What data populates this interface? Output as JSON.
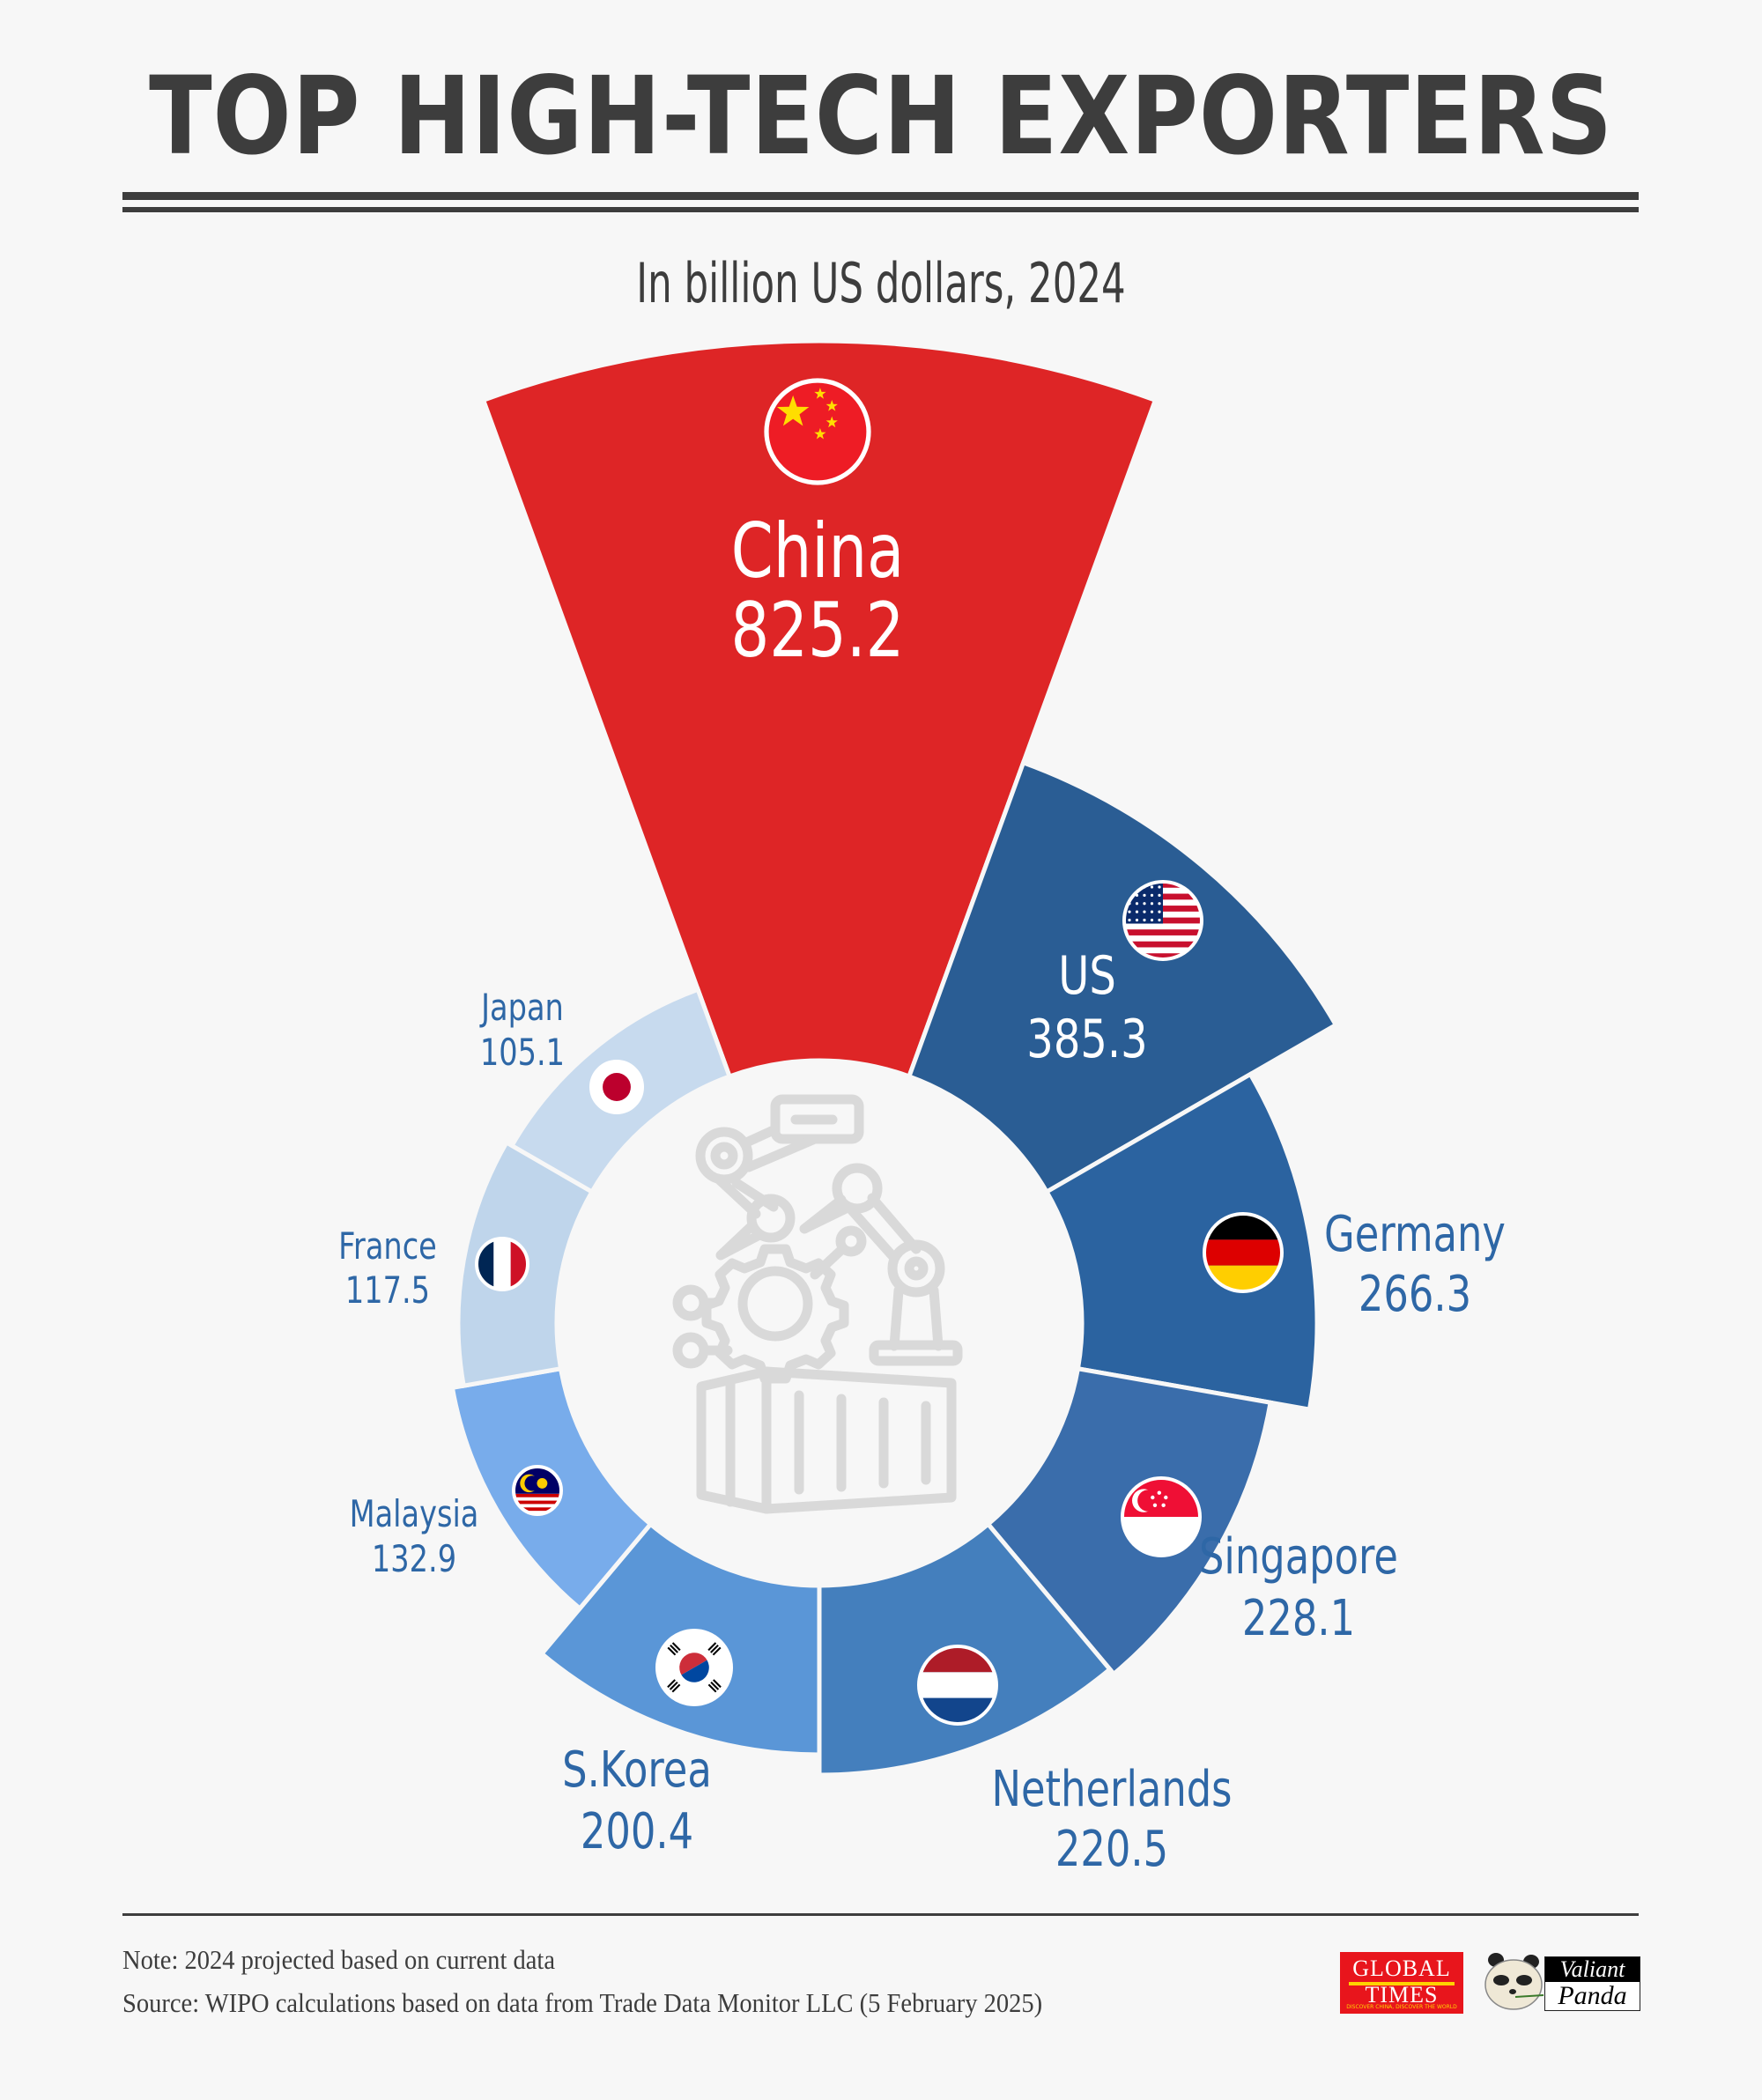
{
  "header": {
    "title": "TOP HIGH-TECH EXPORTERS",
    "subtitle": "In billion US dollars, 2024"
  },
  "colors": {
    "background": "#f7f7f7",
    "text_dark": "#3d3d3d",
    "label_blue": "#2e67a6",
    "icon_gray": "#d9d9d9"
  },
  "chart_data": {
    "type": "pie",
    "subtype": "nightingale-rose-donut",
    "title": "TOP HIGH-TECH EXPORTERS",
    "subtitle": "In billion US dollars, 2024",
    "unit": "billion US dollars",
    "year": 2024,
    "categories": [
      "China",
      "US",
      "Germany",
      "Singapore",
      "Netherlands",
      "S.Korea",
      "Malaysia",
      "France",
      "Japan"
    ],
    "values": [
      825.2,
      385.3,
      266.3,
      228.1,
      220.5,
      200.4,
      132.9,
      117.5,
      105.1
    ],
    "segment_colors": [
      "#de2526",
      "#2a5d94",
      "#2b63a0",
      "#3a6dab",
      "#447fbd",
      "#5a96d7",
      "#78aceb",
      "#bfd5eb",
      "#c7daee"
    ],
    "center_icon": "robot-arm-gear-container-icon",
    "legend": "none"
  },
  "segments": [
    {
      "name": "China",
      "value": "825.2",
      "flag": "china-flag",
      "label_color": "#ffffff"
    },
    {
      "name": "US",
      "value": "385.3",
      "flag": "us-flag",
      "label_color": "#ffffff"
    },
    {
      "name": "Germany",
      "value": "266.3",
      "flag": "germany-flag",
      "label_color": "#2e67a6"
    },
    {
      "name": "Singapore",
      "value": "228.1",
      "flag": "singapore-flag",
      "label_color": "#2e67a6"
    },
    {
      "name": "Netherlands",
      "value": "220.5",
      "flag": "netherlands-flag",
      "label_color": "#2e67a6"
    },
    {
      "name": "S.Korea",
      "value": "200.4",
      "flag": "south-korea-flag",
      "label_color": "#2e67a6"
    },
    {
      "name": "Malaysia",
      "value": "132.9",
      "flag": "malaysia-flag",
      "label_color": "#2e67a6"
    },
    {
      "name": "France",
      "value": "117.5",
      "flag": "france-flag",
      "label_color": "#2e67a6"
    },
    {
      "name": "Japan",
      "value": "105.1",
      "flag": "japan-flag",
      "label_color": "#2e67a6"
    }
  ],
  "footer": {
    "note": "Note: 2024 projected based on current data",
    "source": "Source: WIPO calculations based on data from Trade Data Monitor LLC (5 February 2025)",
    "logo_global_times": {
      "line1": "GLOBAL",
      "line2": "TIMES",
      "tagline": "DISCOVER CHINA, DISCOVER THE WORLD"
    },
    "logo_valiant_panda": {
      "line1": "Valiant",
      "line2": "Panda"
    }
  }
}
